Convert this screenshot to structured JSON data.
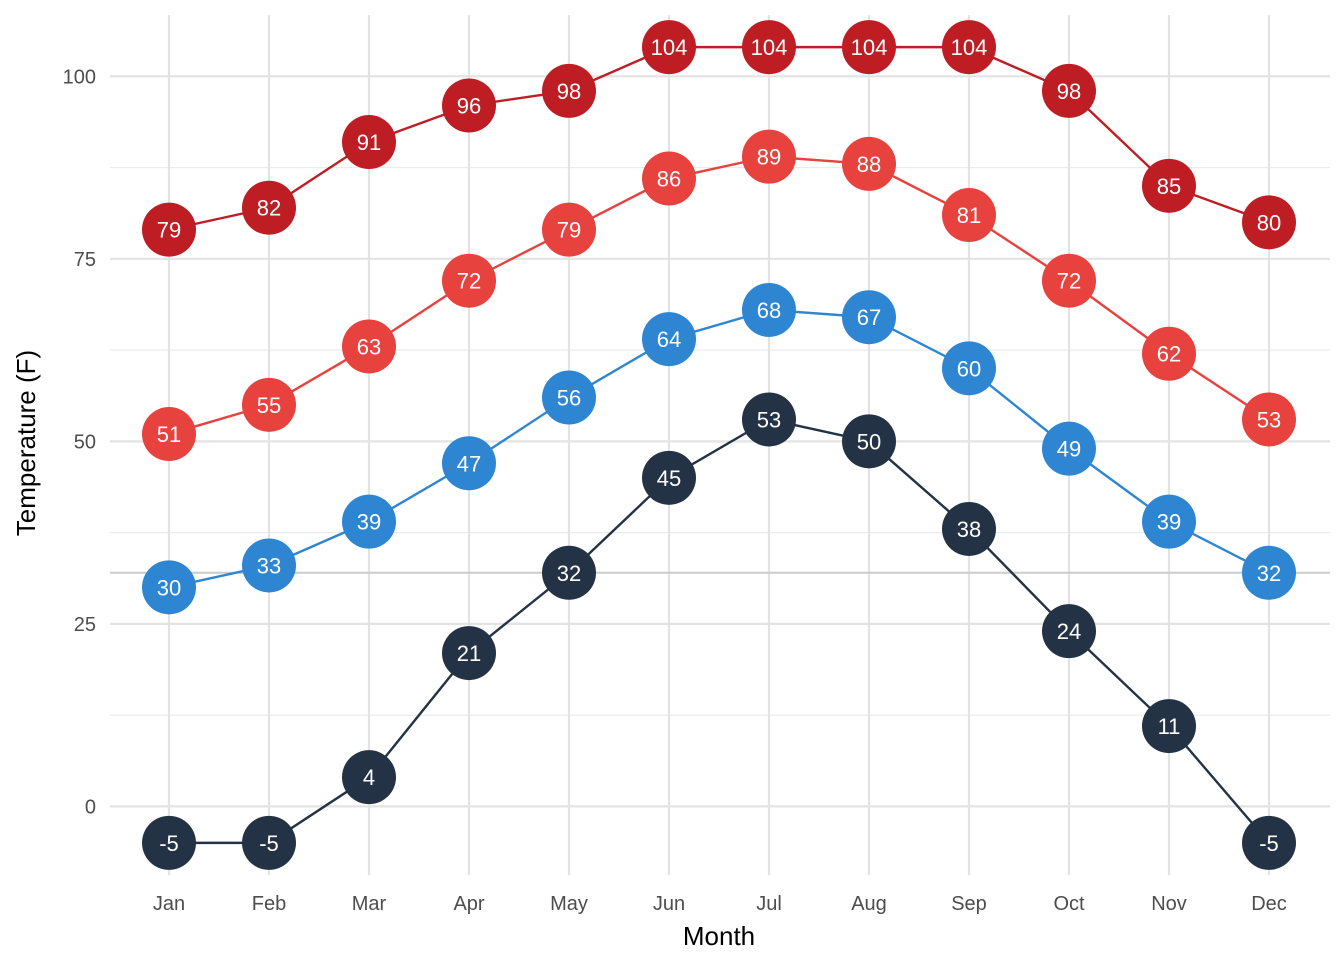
{
  "chart_data": {
    "type": "line",
    "xlabel": "Month",
    "ylabel": "Temperature (F)",
    "categories": [
      "Jan",
      "Feb",
      "Mar",
      "Apr",
      "May",
      "Jun",
      "Jul",
      "Aug",
      "Sep",
      "Oct",
      "Nov",
      "Dec"
    ],
    "ylim": [
      -9.4,
      108.4
    ],
    "yticks": [
      0,
      25,
      50,
      75,
      100
    ],
    "reference_line": 32,
    "grid": true,
    "legend": "none",
    "series": [
      {
        "color": "#bf1d24",
        "values": [
          79,
          82,
          91,
          96,
          98,
          104,
          104,
          104,
          104,
          98,
          85,
          80
        ]
      },
      {
        "color": "#e8423f",
        "values": [
          51,
          55,
          63,
          72,
          79,
          86,
          89,
          88,
          81,
          72,
          62,
          53
        ]
      },
      {
        "color": "#2e86d3",
        "values": [
          30,
          33,
          39,
          47,
          56,
          64,
          68,
          67,
          60,
          49,
          39,
          32
        ]
      },
      {
        "color": "#233345",
        "values": [
          -5,
          -5,
          4,
          21,
          32,
          45,
          53,
          50,
          38,
          24,
          11,
          -5
        ]
      }
    ]
  }
}
